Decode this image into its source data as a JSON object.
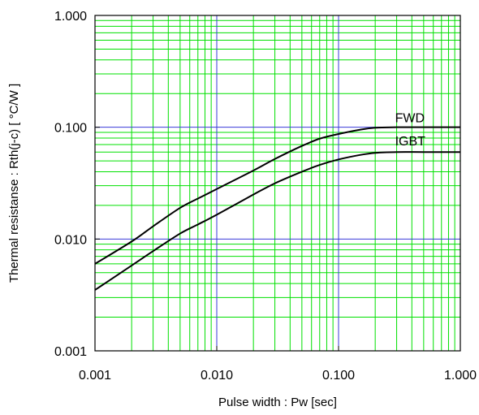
{
  "chart_data": {
    "type": "line",
    "xlabel": "Pulse width : Pw [sec]",
    "ylabel": "Thermal resistanse  :  Rth(j-c)  [ °C/W ]",
    "x_scale": "log",
    "y_scale": "log",
    "xlim": [
      0.001,
      1.0
    ],
    "ylim": [
      0.001,
      1.0
    ],
    "grid": true,
    "x_tick_labels": [
      "0.001",
      "0.010",
      "0.100",
      "1.000"
    ],
    "y_tick_labels": [
      "0.001",
      "0.010",
      "0.100",
      "1.000"
    ],
    "x": [
      0.001,
      0.002,
      0.003,
      0.005,
      0.007,
      0.01,
      0.02,
      0.03,
      0.05,
      0.07,
      0.1,
      0.15,
      0.2,
      0.3,
      0.5,
      1.0
    ],
    "series": [
      {
        "name": "FWD",
        "color": "#000000",
        "values": [
          0.006,
          0.0095,
          0.013,
          0.019,
          0.023,
          0.028,
          0.041,
          0.052,
          0.068,
          0.079,
          0.087,
          0.095,
          0.099,
          0.1,
          0.1,
          0.1
        ]
      },
      {
        "name": "IGBT",
        "color": "#000000",
        "values": [
          0.0035,
          0.0058,
          0.0078,
          0.0112,
          0.0135,
          0.0165,
          0.025,
          0.0315,
          0.04,
          0.046,
          0.0515,
          0.0565,
          0.059,
          0.06,
          0.06,
          0.06
        ]
      }
    ],
    "colors": {
      "minor_grid": "#00e000",
      "major_grid": "#3a3ad8",
      "frame": "#000000"
    }
  }
}
